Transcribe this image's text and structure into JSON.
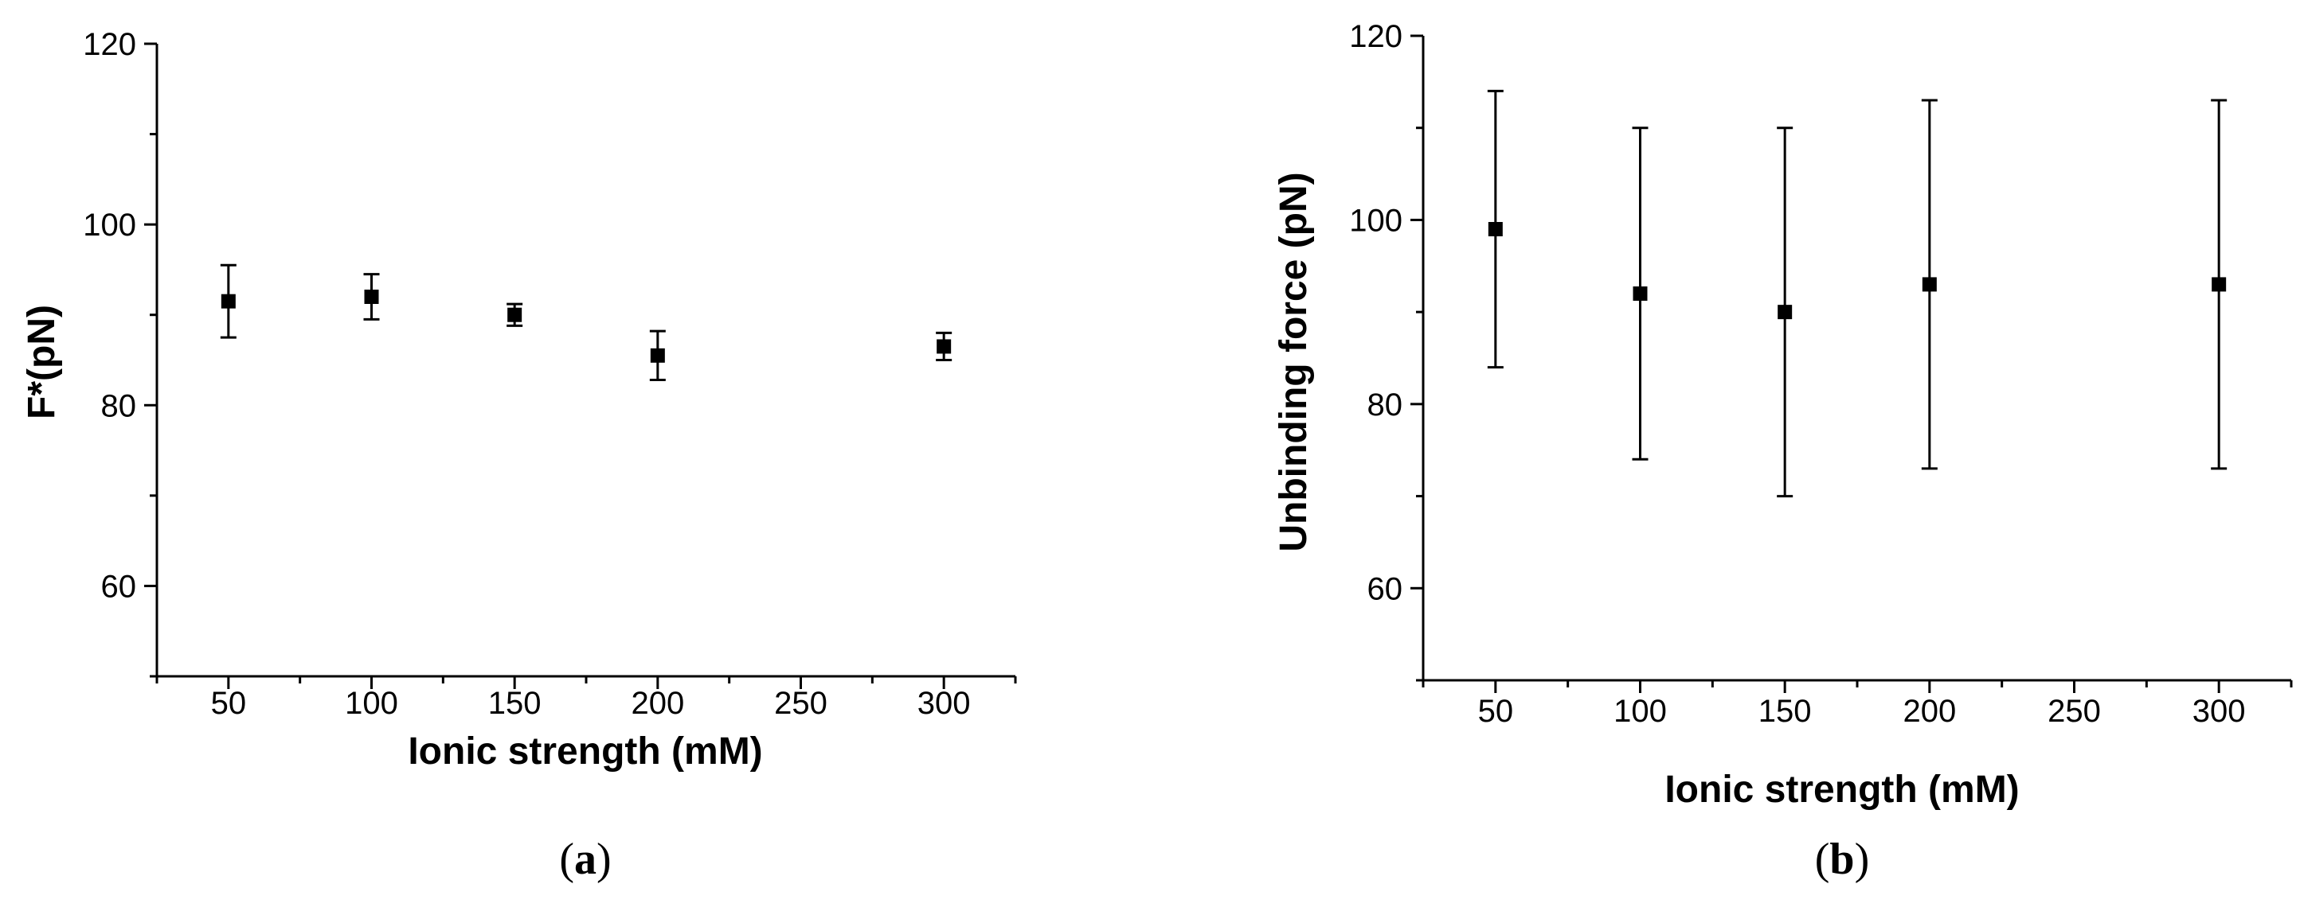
{
  "chart_data": [
    {
      "type": "scatter",
      "panel_label": "a",
      "xlabel": "Ionic strength (mM)",
      "ylabel": "F*(pN)",
      "xlim": [
        25,
        325
      ],
      "ylim": [
        50,
        120
      ],
      "xticks": [
        50,
        100,
        150,
        200,
        250,
        300
      ],
      "yticks": [
        60,
        80,
        100,
        120
      ],
      "grid": false,
      "series": [
        {
          "x": [
            50,
            100,
            150,
            200,
            300
          ],
          "y": [
            91.5,
            92.0,
            90.0,
            85.5,
            86.5
          ],
          "error": [
            4.0,
            2.5,
            1.2,
            2.7,
            1.5
          ]
        }
      ]
    },
    {
      "type": "scatter",
      "panel_label": "b",
      "xlabel": "Ionic strength (mM)",
      "ylabel": "Unbinding force (pN)",
      "xlim": [
        25,
        325
      ],
      "ylim": [
        50,
        120
      ],
      "xticks": [
        50,
        100,
        150,
        200,
        250,
        300
      ],
      "yticks": [
        60,
        80,
        100,
        120
      ],
      "grid": false,
      "series": [
        {
          "x": [
            50,
            100,
            150,
            200,
            300
          ],
          "y": [
            99,
            92,
            90,
            93,
            93
          ],
          "error_low": [
            84,
            74,
            70,
            73,
            73
          ],
          "error_high": [
            114,
            110,
            110,
            113,
            113
          ]
        }
      ]
    }
  ]
}
